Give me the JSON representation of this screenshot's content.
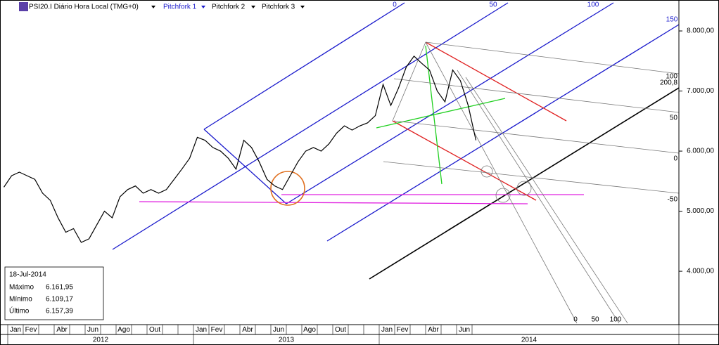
{
  "header": {
    "symbol": "PSI20.I Diário Hora Local (TMG+0)",
    "tools": [
      "Pitchfork 1",
      "Pitchfork 2",
      "Pitchfork 3"
    ]
  },
  "chart_data": {
    "type": "line",
    "categories": [
      null,
      "Jan",
      null,
      "Fev",
      null,
      null,
      null,
      "Abr",
      null,
      null,
      null,
      "Jun",
      null,
      null,
      null,
      "Ago",
      null,
      null,
      null,
      "Out",
      null,
      null,
      null,
      null,
      null,
      "Jan",
      null,
      "Fev",
      null,
      null,
      null,
      "Abr",
      null,
      null,
      null,
      "Jun",
      null,
      null,
      null,
      "Ago",
      null,
      null,
      null,
      "Out",
      null,
      null,
      null,
      null,
      null,
      "Jan",
      null,
      "Fev",
      null,
      null,
      null,
      "Abr",
      null,
      null,
      null,
      "Jun",
      null,
      null
    ],
    "years": [
      "2012",
      "2013",
      "2014"
    ],
    "series": [
      {
        "name": "PSI20.I",
        "color": "#000000",
        "values": [
          5400,
          5590,
          5650,
          5590,
          5530,
          5300,
          5180,
          4890,
          4650,
          4710,
          4480,
          4540,
          4770,
          5000,
          4890,
          5240,
          5360,
          5420,
          5300,
          5360,
          5300,
          5360,
          5530,
          5700,
          5880,
          6230,
          6180,
          6060,
          6000,
          5880,
          5700,
          6180,
          6060,
          5820,
          5530,
          5420,
          5360,
          5590,
          5820,
          6000,
          6060,
          6000,
          6120,
          6300,
          6420,
          6350,
          6420,
          6470,
          6590,
          7110,
          6760,
          7050,
          7400,
          7580,
          7460,
          7350,
          7000,
          6820,
          7350,
          7170,
          6760,
          6180
        ]
      }
    ],
    "ylim": [
      3112,
      8515
    ],
    "yticks": [
      {
        "value": 4000,
        "label": "4.000,00"
      },
      {
        "value": 5000,
        "label": "5.000,00"
      },
      {
        "value": 6000,
        "label": "6.000,00"
      },
      {
        "value": 7000,
        "label": "7.000,00"
      },
      {
        "value": 8000,
        "label": "8.000,00"
      }
    ],
    "grid": false,
    "annotations": {
      "fork_top": [
        "0",
        "50",
        "100",
        "150"
      ],
      "fork_bottom": [
        "0",
        "50",
        "100"
      ],
      "fib": [
        "100",
        "200,8",
        "50",
        "0",
        "-50"
      ]
    }
  },
  "info_box": {
    "date": "18-Jul-2014",
    "rows": [
      [
        "Máximo",
        "6.161,95"
      ],
      [
        "Mínimo",
        "6.109,17"
      ],
      [
        "Último",
        "6.157,39"
      ]
    ]
  }
}
